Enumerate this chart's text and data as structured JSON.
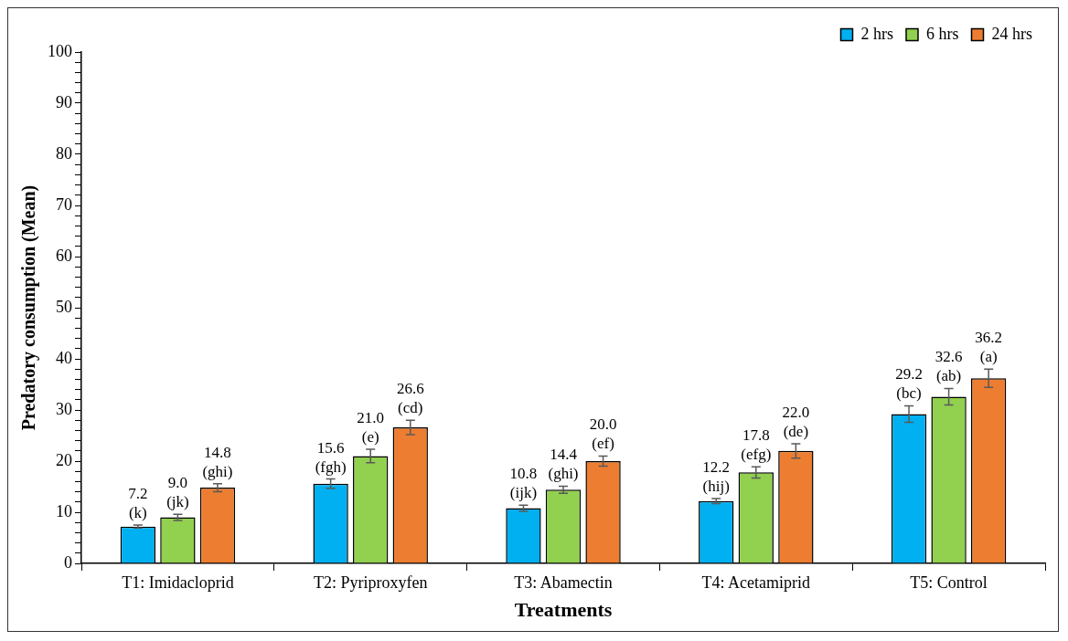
{
  "chart_data": {
    "type": "bar",
    "xlabel": "Treatments",
    "ylabel": "Predatory consumption (Mean)",
    "categories": [
      "T1: Imidacloprid",
      "T2: Pyriproxyfen",
      "T3: Abamectin",
      "T4: Acetamiprid",
      "T5: Control"
    ],
    "series": [
      {
        "name": "2 hrs",
        "color": "#00b0f0",
        "values": [
          7.2,
          15.6,
          10.8,
          12.2,
          29.2
        ],
        "errors": [
          0.3,
          0.9,
          0.6,
          0.5,
          1.6
        ],
        "value_labels": [
          "7.2\n(k)",
          "15.6\n(fgh)",
          "10.8\n(ijk)",
          "12.2\n(hij)",
          "29.2\n(bc)"
        ]
      },
      {
        "name": "6 hrs",
        "color": "#92d050",
        "values": [
          9.0,
          21.0,
          14.4,
          17.8,
          32.6
        ],
        "errors": [
          0.6,
          1.3,
          0.7,
          1.1,
          1.6
        ],
        "value_labels": [
          "9.0\n(jk)",
          "21.0\n(e)",
          "14.4\n(ghi)",
          "17.8\n(efg)",
          "32.6\n(ab)"
        ]
      },
      {
        "name": "24 hrs",
        "color": "#ed7d31",
        "values": [
          14.8,
          26.6,
          20.0,
          22.0,
          36.2
        ],
        "errors": [
          0.8,
          1.4,
          1.0,
          1.4,
          1.8
        ],
        "value_labels": [
          "14.8\n(ghi)",
          "26.6\n(cd)",
          "20.0\n(ef)",
          "22.0\n(de)",
          "36.2\n(a)"
        ]
      }
    ],
    "ylim": [
      0,
      100
    ],
    "yticks": [
      0,
      {
        "value": 2,
        "label": null
      },
      {
        "value": 4,
        "label": null
      },
      {
        "value": 6,
        "label": null
      },
      {
        "value": 8,
        "label": null
      },
      10,
      {
        "value": 12,
        "label": null
      },
      {
        "value": 14,
        "label": null
      },
      {
        "value": 16,
        "label": null
      },
      {
        "value": 18,
        "label": null
      },
      20,
      {
        "value": 22,
        "label": null
      },
      {
        "value": 24,
        "label": null
      },
      {
        "value": 26,
        "label": null
      },
      {
        "value": 28,
        "label": null
      },
      30,
      {
        "value": 32,
        "label": null
      },
      {
        "value": 34,
        "label": null
      },
      {
        "value": 36,
        "label": null
      },
      {
        "value": 38,
        "label": null
      },
      40,
      {
        "value": 42,
        "label": null
      },
      {
        "value": 44,
        "label": null
      },
      {
        "value": 46,
        "label": null
      },
      {
        "value": 48,
        "label": null
      },
      50,
      {
        "value": 52,
        "label": null
      },
      {
        "value": 54,
        "label": null
      },
      {
        "value": 56,
        "label": null
      },
      {
        "value": 58,
        "label": null
      },
      60,
      {
        "value": 62,
        "label": null
      },
      {
        "value": 64,
        "label": null
      },
      {
        "value": 66,
        "label": null
      },
      {
        "value": 68,
        "label": null
      },
      70,
      {
        "value": 72,
        "label": null
      },
      {
        "value": 74,
        "label": null
      },
      {
        "value": 76,
        "label": null
      },
      {
        "value": 78,
        "label": null
      },
      80,
      {
        "value": 82,
        "label": null
      },
      {
        "value": 84,
        "label": null
      },
      {
        "value": 86,
        "label": null
      },
      {
        "value": 88,
        "label": null
      },
      90,
      {
        "value": 92,
        "label": null
      },
      {
        "value": 94,
        "label": null
      },
      {
        "value": 96,
        "label": null
      },
      {
        "value": 98,
        "label": null
      },
      100
    ],
    "grid": false,
    "legend": "top right"
  }
}
